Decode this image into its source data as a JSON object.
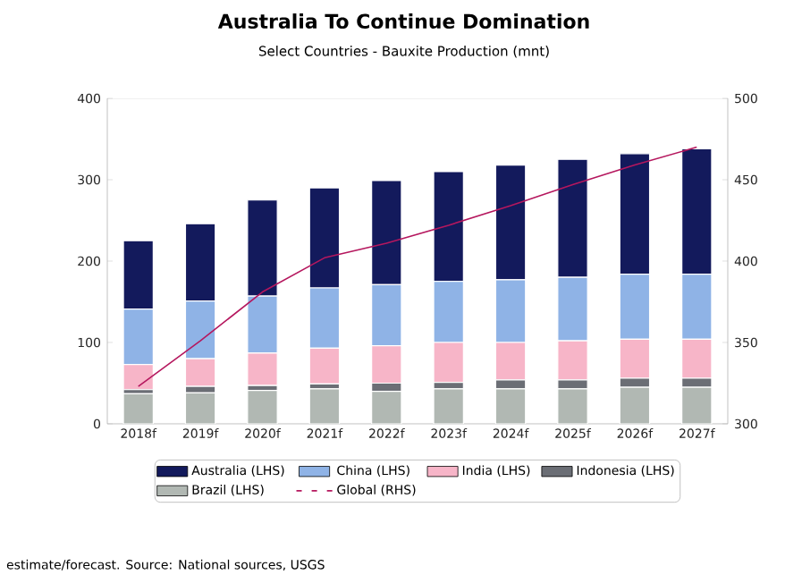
{
  "chart_data": {
    "type": "bar",
    "title": "Australia To Continue Domination",
    "subtitle": "Select Countries - Bauxite Production (mnt)",
    "categories": [
      "2018f",
      "2019f",
      "2020f",
      "2021f",
      "2022f",
      "2023f",
      "2024f",
      "2025f",
      "2026f",
      "2027f"
    ],
    "stacked": true,
    "series": [
      {
        "name": "Brazil (LHS)",
        "color": "#b1b8b3",
        "values": [
          37,
          38,
          41,
          43,
          40,
          43,
          43,
          43,
          45,
          45
        ]
      },
      {
        "name": "Indonesia (LHS)",
        "color": "#6b6e75",
        "values": [
          5,
          8,
          6,
          6,
          10,
          8,
          11,
          11,
          11,
          11
        ]
      },
      {
        "name": "India (LHS)",
        "color": "#f7b5c8",
        "values": [
          31,
          34,
          40,
          44,
          46,
          49,
          46,
          48,
          48,
          48
        ]
      },
      {
        "name": "China (LHS)",
        "color": "#8fb3e6",
        "values": [
          68,
          71,
          70,
          74,
          75,
          75,
          77,
          78,
          80,
          80
        ]
      },
      {
        "name": "Australia (LHS)",
        "color": "#131a5c",
        "values": [
          84,
          95,
          118,
          123,
          128,
          135,
          141,
          145,
          148,
          154
        ]
      },
      {
        "name": "Global (RHS)",
        "color": "#b5175e",
        "type": "line",
        "axis": "y2",
        "values": [
          323,
          351,
          381,
          402,
          411,
          422,
          434,
          447,
          459,
          470
        ]
      }
    ],
    "ylim": [
      0,
      400
    ],
    "yticks": [
      0,
      100,
      200,
      300,
      400
    ],
    "y2lim": [
      300,
      500
    ],
    "y2ticks": [
      300,
      350,
      400,
      450,
      500
    ],
    "legend": "bottom",
    "annotations": [
      "estimate/forecast. Source: National sources, USGS"
    ]
  }
}
